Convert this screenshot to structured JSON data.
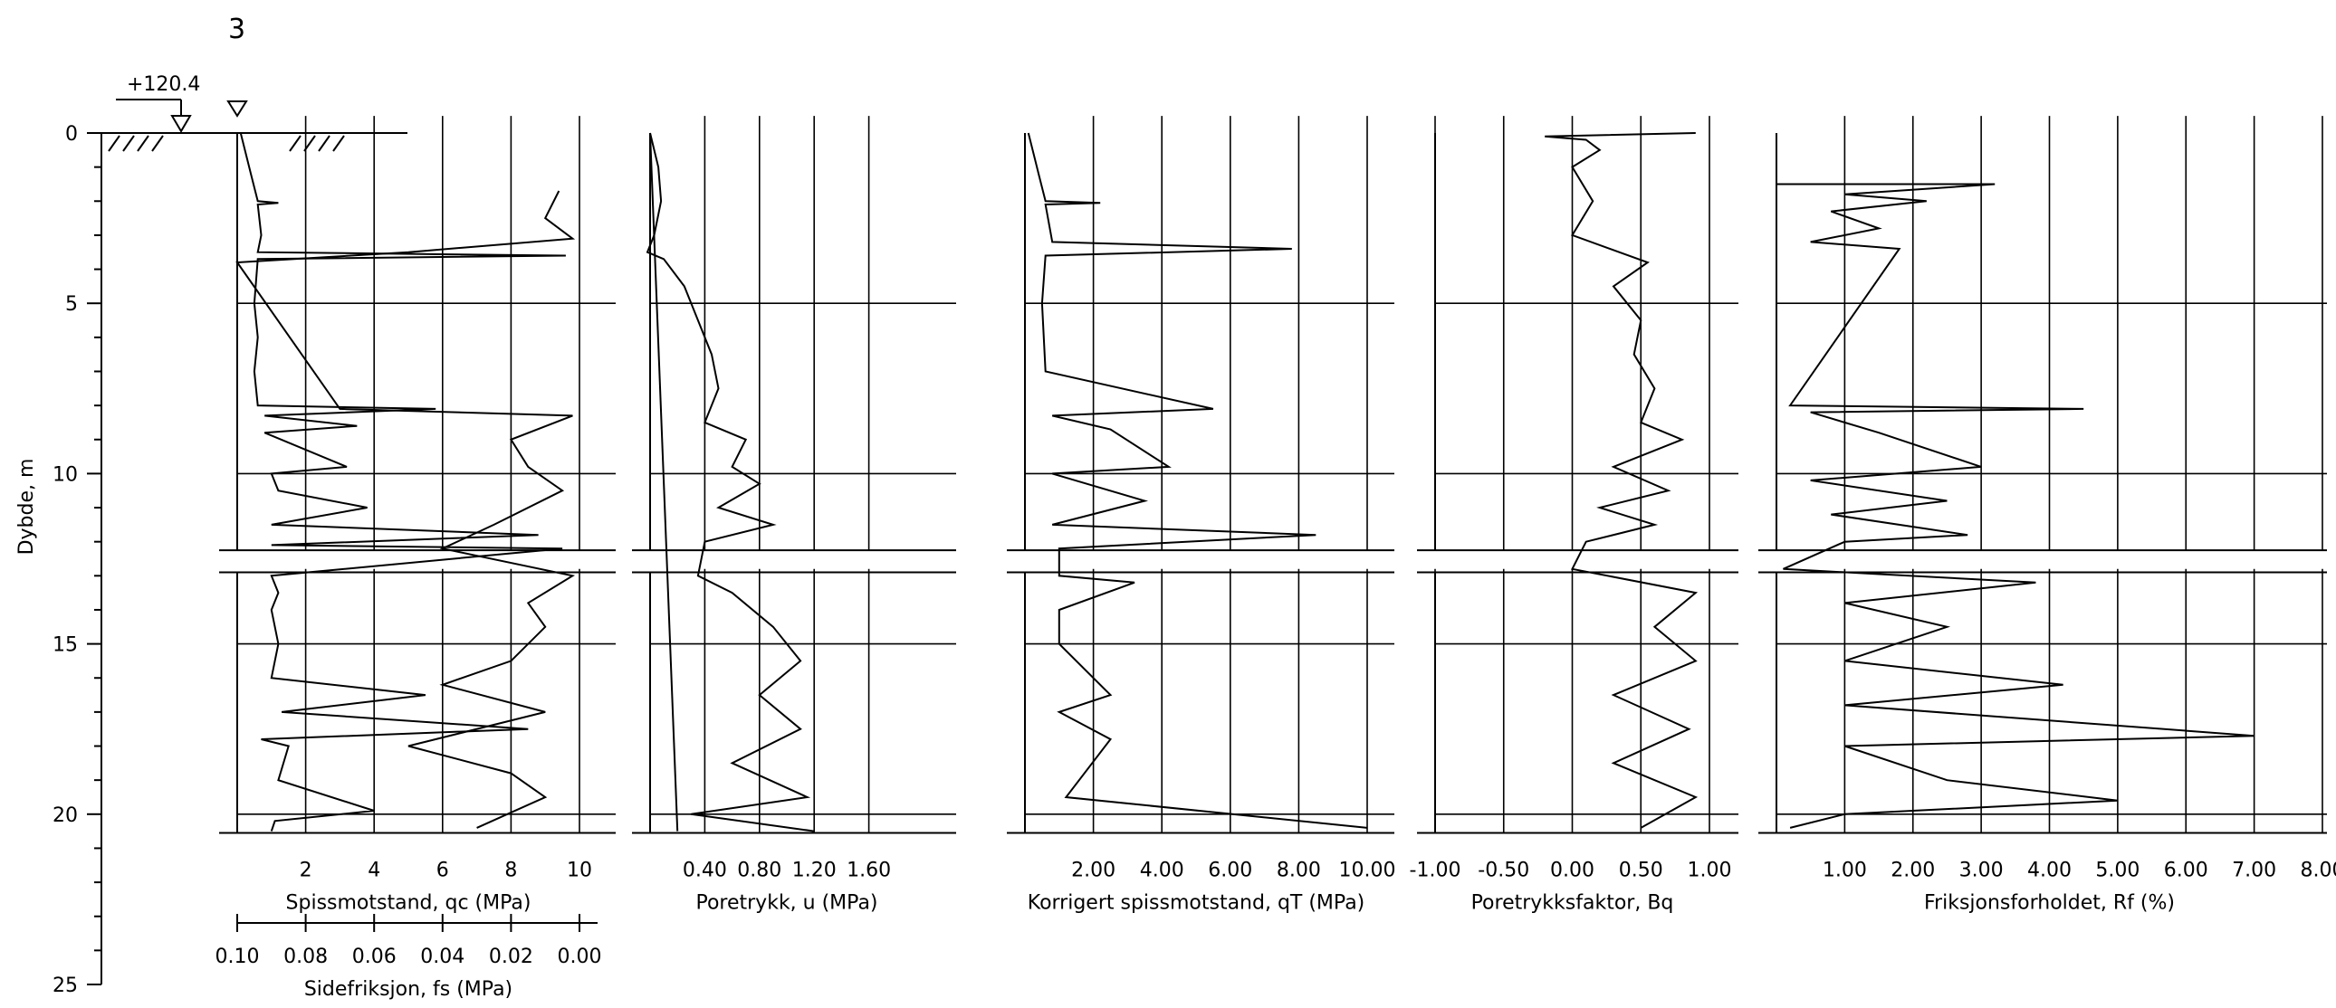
{
  "sheet_label": "3",
  "elevation": "+120.4",
  "depth_axis": {
    "label": "Dybde, m",
    "ticks": [
      "0",
      "5",
      "10",
      "15",
      "20",
      "25"
    ],
    "range": [
      0,
      25
    ]
  },
  "chart_data": [
    {
      "type": "line",
      "id": "qc",
      "xlabel": "Spissmotstand, qc (MPa)",
      "xlim": [
        0,
        10
      ],
      "xticks": [
        2,
        4,
        6,
        8,
        10
      ],
      "xtick_labels": [
        "2",
        "4",
        "6",
        "8",
        "10"
      ],
      "secondary_axis": {
        "xlabel": "Sidefriksjon, fs (MPa)",
        "xlim": [
          0.1,
          0.0
        ],
        "xticks": [
          0.1,
          0.08,
          0.06,
          0.04,
          0.02,
          0.0
        ],
        "xtick_labels": [
          "0.10",
          "0.08",
          "0.06",
          "0.04",
          "0.02",
          "0.00"
        ]
      },
      "ylim": [
        0,
        20.5
      ],
      "grid": true,
      "series": [
        {
          "values_depth_x": [
            [
              0,
              0.1
            ],
            [
              1.2,
              0.4
            ],
            [
              2.0,
              0.6
            ],
            [
              2.05,
              1.2
            ],
            [
              2.1,
              0.6
            ],
            [
              3.0,
              0.7
            ],
            [
              3.5,
              0.6
            ],
            [
              3.6,
              9.6
            ],
            [
              3.7,
              0.6
            ],
            [
              5.0,
              0.5
            ],
            [
              6.0,
              0.6
            ],
            [
              7.0,
              0.5
            ],
            [
              8.0,
              0.6
            ],
            [
              8.1,
              5.8
            ],
            [
              8.3,
              0.8
            ],
            [
              8.6,
              3.5
            ],
            [
              8.8,
              0.8
            ],
            [
              9.8,
              3.2
            ],
            [
              10.0,
              1.0
            ],
            [
              10.5,
              1.2
            ],
            [
              11.0,
              3.8
            ],
            [
              11.5,
              1.0
            ],
            [
              11.8,
              8.8
            ],
            [
              12.1,
              1.0
            ],
            [
              12.2,
              9.5
            ],
            [
              13.0,
              1.0
            ],
            [
              13.5,
              1.2
            ],
            [
              14.0,
              1.0
            ],
            [
              15.0,
              1.2
            ],
            [
              16.0,
              1.0
            ],
            [
              16.5,
              5.5
            ],
            [
              17.0,
              1.3
            ],
            [
              17.5,
              8.5
            ],
            [
              17.8,
              0.7
            ],
            [
              18.0,
              1.5
            ],
            [
              19.0,
              1.2
            ],
            [
              19.9,
              4.0
            ],
            [
              20.2,
              1.1
            ],
            [
              20.5,
              1.0
            ]
          ]
        },
        {
          "values_depth_fs": [
            [
              1.7,
              0.006
            ],
            [
              2.5,
              0.01
            ],
            [
              3.1,
              0.002
            ],
            [
              3.5,
              0.05
            ],
            [
              3.8,
              0.1
            ],
            [
              8.1,
              0.07
            ],
            [
              8.3,
              0.002
            ],
            [
              9.0,
              0.02
            ],
            [
              9.8,
              0.015
            ],
            [
              10.5,
              0.005
            ],
            [
              11.5,
              0.025
            ],
            [
              12.2,
              0.04
            ],
            [
              13.0,
              0.002
            ],
            [
              13.8,
              0.015
            ],
            [
              14.5,
              0.01
            ],
            [
              15.5,
              0.02
            ],
            [
              16.2,
              0.04
            ],
            [
              17.0,
              0.01
            ],
            [
              18.0,
              0.05
            ],
            [
              18.8,
              0.02
            ],
            [
              19.5,
              0.01
            ],
            [
              20.4,
              0.03
            ]
          ]
        }
      ]
    },
    {
      "type": "line",
      "id": "u",
      "xlabel": "Poretrykk, u (MPa)",
      "xlim": [
        0,
        2.0
      ],
      "xticks": [
        0.4,
        0.8,
        1.2,
        1.6
      ],
      "xtick_labels": [
        "0.40",
        "0.80",
        "1.20",
        "1.60"
      ],
      "ylim": [
        0,
        20.5
      ],
      "grid": true,
      "series": [
        {
          "values_depth_x": [
            [
              0,
              0.0
            ],
            [
              1.0,
              0.06
            ],
            [
              2.0,
              0.08
            ],
            [
              3.0,
              0.03
            ],
            [
              3.5,
              -0.02
            ],
            [
              3.7,
              0.1
            ],
            [
              4.5,
              0.25
            ],
            [
              5.5,
              0.35
            ],
            [
              6.5,
              0.45
            ],
            [
              7.5,
              0.5
            ],
            [
              8.5,
              0.4
            ],
            [
              9.0,
              0.7
            ],
            [
              9.8,
              0.6
            ],
            [
              10.3,
              0.8
            ],
            [
              11.0,
              0.5
            ],
            [
              11.5,
              0.9
            ],
            [
              12.0,
              0.4
            ],
            [
              13.0,
              0.35
            ],
            [
              13.5,
              0.6
            ],
            [
              14.5,
              0.9
            ],
            [
              15.5,
              1.1
            ],
            [
              16.5,
              0.8
            ],
            [
              17.5,
              1.1
            ],
            [
              18.5,
              0.6
            ],
            [
              19.5,
              1.15
            ],
            [
              20.0,
              0.3
            ],
            [
              20.5,
              1.2
            ]
          ]
        },
        {
          "values_depth_u0": [
            [
              0,
              0.0
            ],
            [
              20.5,
              0.2
            ]
          ]
        }
      ]
    },
    {
      "type": "line",
      "id": "qT",
      "xlabel": "Korrigert spissmotstand, qT (MPa)",
      "xlim": [
        0,
        10
      ],
      "xticks": [
        2,
        4,
        6,
        8,
        10
      ],
      "xtick_labels": [
        "2.00",
        "4.00",
        "6.00",
        "8.00",
        "10.00"
      ],
      "ylim": [
        0,
        20.5
      ],
      "grid": true,
      "series": [
        {
          "values_depth_x": [
            [
              0,
              0.1
            ],
            [
              1.2,
              0.4
            ],
            [
              2.0,
              0.6
            ],
            [
              2.05,
              2.2
            ],
            [
              2.1,
              0.6
            ],
            [
              3.2,
              0.8
            ],
            [
              3.4,
              7.8
            ],
            [
              3.6,
              0.6
            ],
            [
              5.0,
              0.5
            ],
            [
              7.0,
              0.6
            ],
            [
              8.1,
              5.5
            ],
            [
              8.3,
              0.8
            ],
            [
              8.7,
              2.5
            ],
            [
              9.8,
              4.2
            ],
            [
              10.0,
              0.8
            ],
            [
              10.8,
              3.5
            ],
            [
              11.5,
              0.8
            ],
            [
              11.8,
              8.5
            ],
            [
              12.2,
              1.0
            ],
            [
              13.0,
              1.0
            ],
            [
              13.2,
              3.2
            ],
            [
              14.0,
              1.0
            ],
            [
              15.0,
              1.0
            ],
            [
              16.5,
              2.5
            ],
            [
              17.0,
              1.0
            ],
            [
              17.8,
              2.5
            ],
            [
              19.5,
              1.2
            ],
            [
              20.4,
              10.0
            ]
          ]
        }
      ]
    },
    {
      "type": "line",
      "id": "Bq",
      "xlabel": "Poretrykksfaktor, Bq",
      "xlim": [
        -1.0,
        1.0
      ],
      "xticks": [
        -1.0,
        -0.5,
        0.0,
        0.5,
        1.0
      ],
      "xtick_labels": [
        "-1.00",
        "-0.50",
        "0.00",
        "0.50",
        "1.00"
      ],
      "ylim": [
        0,
        20.5
      ],
      "grid": true,
      "series": [
        {
          "values_depth_x": [
            [
              0,
              0.9
            ],
            [
              0.1,
              -0.2
            ],
            [
              0.2,
              0.1
            ],
            [
              0.5,
              0.2
            ],
            [
              1.0,
              0.0
            ],
            [
              2.0,
              0.15
            ],
            [
              3.0,
              0.0
            ],
            [
              3.8,
              0.55
            ],
            [
              4.5,
              0.3
            ],
            [
              5.5,
              0.5
            ],
            [
              6.5,
              0.45
            ],
            [
              7.5,
              0.6
            ],
            [
              8.5,
              0.5
            ],
            [
              9.0,
              0.8
            ],
            [
              9.8,
              0.3
            ],
            [
              10.5,
              0.7
            ],
            [
              11.0,
              0.2
            ],
            [
              11.5,
              0.6
            ],
            [
              12.0,
              0.1
            ],
            [
              12.8,
              0.0
            ],
            [
              13.5,
              0.9
            ],
            [
              14.5,
              0.6
            ],
            [
              15.5,
              0.9
            ],
            [
              16.5,
              0.3
            ],
            [
              17.5,
              0.85
            ],
            [
              18.5,
              0.3
            ],
            [
              19.5,
              0.9
            ],
            [
              20.4,
              0.5
            ]
          ]
        }
      ]
    },
    {
      "type": "line",
      "id": "Rf",
      "xlabel": "Friksjonsforholdet, Rf (%)",
      "xlim": [
        0,
        8.0
      ],
      "xticks": [
        1,
        2,
        3,
        4,
        5,
        6,
        7,
        8
      ],
      "xtick_labels": [
        "1.00",
        "2.00",
        "3.00",
        "4.00",
        "5.00",
        "6.00",
        "7.00",
        "8.00"
      ],
      "ylim": [
        0,
        20.5
      ],
      "grid": true,
      "series": [
        {
          "values_depth_x": [
            [
              1.5,
              0.0
            ],
            [
              1.5,
              3.2
            ],
            [
              1.8,
              1.0
            ],
            [
              2.0,
              2.2
            ],
            [
              2.3,
              0.8
            ],
            [
              2.8,
              1.5
            ],
            [
              3.2,
              0.5
            ],
            [
              3.4,
              1.8
            ],
            [
              8.0,
              0.2
            ],
            [
              8.1,
              4.5
            ],
            [
              8.2,
              0.5
            ],
            [
              8.8,
              1.5
            ],
            [
              9.8,
              3.0
            ],
            [
              10.2,
              0.5
            ],
            [
              10.8,
              2.5
            ],
            [
              11.2,
              0.8
            ],
            [
              11.8,
              2.8
            ],
            [
              12.0,
              1.0
            ],
            [
              12.8,
              0.1
            ],
            [
              13.2,
              3.8
            ],
            [
              13.8,
              1.0
            ],
            [
              14.5,
              2.5
            ],
            [
              15.5,
              1.0
            ],
            [
              16.2,
              4.2
            ],
            [
              16.8,
              1.0
            ],
            [
              17.7,
              7.0
            ],
            [
              18.0,
              1.0
            ],
            [
              19.0,
              2.5
            ],
            [
              19.6,
              5.0
            ],
            [
              20.0,
              1.0
            ],
            [
              20.4,
              0.2
            ]
          ]
        }
      ]
    }
  ]
}
